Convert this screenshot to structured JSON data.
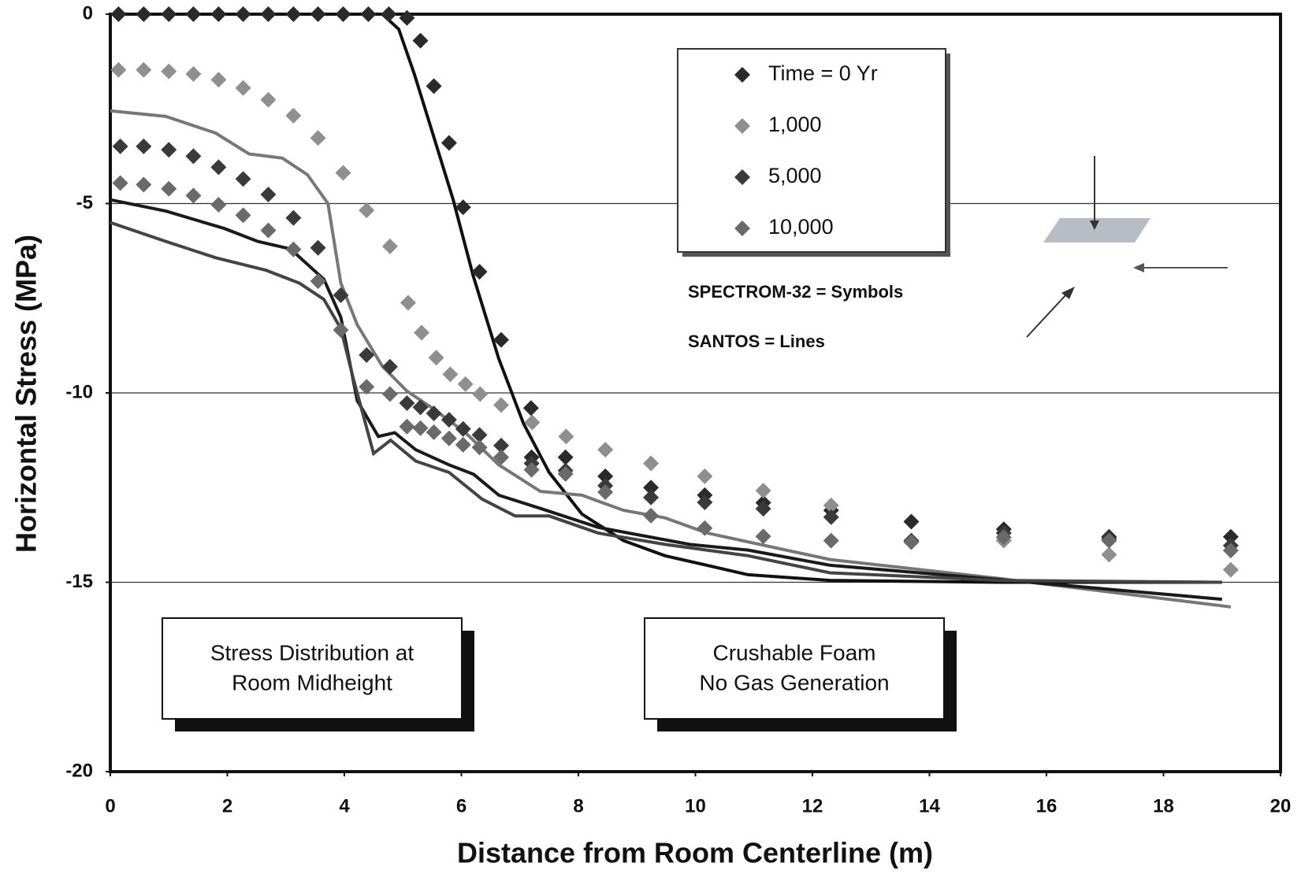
{
  "chart_data": {
    "type": "scatter",
    "x_label": "Distance from Room Centerline (m)",
    "y_label": "Horizontal Stress (MPa)",
    "xlim": [
      0,
      20
    ],
    "xticks": [
      0,
      2,
      4,
      6,
      8,
      10,
      12,
      14,
      16,
      18,
      20
    ],
    "ylim": [
      -20,
      0
    ],
    "yticks": [
      0,
      -5,
      -10,
      -15,
      -20
    ],
    "grid": true,
    "series": [
      {
        "name": "Time = 0 Yr",
        "color": "#2a2a2a",
        "x": [
          0.14,
          0.57,
          1.0,
          1.42,
          1.85,
          2.27,
          2.7,
          3.13,
          3.55,
          3.98,
          4.41,
          4.76,
          5.07,
          5.3,
          5.53,
          5.79,
          6.03,
          6.31,
          6.68,
          7.19,
          7.2,
          7.78,
          8.46,
          9.24,
          10.16,
          11.16,
          12.32,
          13.69,
          15.27,
          17.07,
          19.15
        ],
        "values": [
          0,
          0,
          0,
          0,
          0,
          0,
          0,
          0,
          0,
          0,
          0,
          0,
          -0.1,
          -0.7,
          -1.9,
          -3.4,
          -5.1,
          -6.8,
          -8.6,
          -10.4,
          -11.7,
          -11.7,
          -12.2,
          -12.5,
          -12.7,
          -12.9,
          -13.1,
          -13.4,
          -13.6,
          -13.8,
          -13.8
        ]
      },
      {
        "name": "1,000",
        "color": "#8f8f8f",
        "x": [
          0.14,
          0.57,
          1.0,
          1.42,
          1.85,
          2.27,
          2.7,
          3.13,
          3.55,
          3.98,
          4.38,
          4.78,
          5.09,
          5.32,
          5.57,
          5.81,
          6.07,
          6.32,
          6.68,
          7.21,
          7.79,
          8.46,
          9.24,
          10.16,
          11.16,
          12.32,
          15.27,
          17.07,
          19.15
        ],
        "values": [
          -1.47,
          -1.47,
          -1.51,
          -1.58,
          -1.73,
          -1.95,
          -2.26,
          -2.68,
          -3.27,
          -4.19,
          -5.18,
          -6.13,
          -7.62,
          -8.41,
          -9.07,
          -9.51,
          -9.77,
          -10.03,
          -10.32,
          -10.78,
          -11.15,
          -11.5,
          -11.86,
          -12.2,
          -12.58,
          -12.97,
          -13.9,
          -14.27,
          -14.67
        ]
      },
      {
        "name": "5,000",
        "color": "#3a3a3a",
        "x": [
          0.17,
          0.57,
          1.0,
          1.42,
          1.85,
          2.27,
          2.7,
          3.13,
          3.55,
          3.94,
          4.38,
          4.78,
          5.07,
          5.3,
          5.53,
          5.79,
          6.03,
          6.31,
          6.68,
          7.2,
          7.78,
          8.46,
          9.24,
          10.16,
          11.16,
          12.32,
          13.69,
          15.27,
          17.07,
          19.15
        ],
        "values": [
          -3.49,
          -3.49,
          -3.58,
          -3.75,
          -4.04,
          -4.35,
          -4.76,
          -5.38,
          -6.17,
          -7.42,
          -9.0,
          -9.31,
          -10.27,
          -10.38,
          -10.54,
          -10.71,
          -10.95,
          -11.11,
          -11.39,
          -11.86,
          -12.05,
          -12.45,
          -12.76,
          -12.89,
          -13.06,
          -13.28,
          -13.9,
          -13.7,
          -13.85,
          -14.03
        ]
      },
      {
        "name": "10,000",
        "color": "#6a6a6a",
        "x": [
          0.17,
          0.57,
          1.0,
          1.42,
          1.85,
          2.27,
          2.7,
          3.13,
          3.55,
          3.94,
          4.38,
          4.78,
          5.07,
          5.3,
          5.53,
          5.79,
          6.03,
          6.31,
          6.68,
          7.2,
          7.78,
          8.46,
          9.24,
          10.16,
          11.16,
          12.32,
          13.69,
          15.27,
          17.07,
          19.15
        ],
        "values": [
          -4.46,
          -4.5,
          -4.61,
          -4.79,
          -5.03,
          -5.31,
          -5.71,
          -6.21,
          -7.05,
          -8.34,
          -9.84,
          -10.03,
          -10.89,
          -10.93,
          -11.04,
          -11.2,
          -11.37,
          -11.44,
          -11.7,
          -12.03,
          -12.14,
          -12.62,
          -13.24,
          -13.57,
          -13.79,
          -13.9,
          -13.94,
          -13.81,
          -13.9,
          -14.16
        ]
      }
    ],
    "lines": [
      {
        "color": "#111111",
        "x": [
          0,
          4.65,
          4.93,
          5.2,
          5.5,
          5.86,
          6.2,
          6.64,
          7.06,
          7.5,
          8.06,
          8.77,
          9.48,
          10.9,
          12.3,
          15.2,
          19.0
        ],
        "values": [
          0,
          0,
          -0.4,
          -1.6,
          -3.1,
          -4.9,
          -6.9,
          -9.1,
          -10.8,
          -12.1,
          -13.2,
          -13.9,
          -14.3,
          -14.8,
          -14.95,
          -15.0,
          -15.0
        ]
      },
      {
        "color": "#777777",
        "x": [
          0,
          0.95,
          1.8,
          2.37,
          2.94,
          3.37,
          3.72,
          3.94,
          4.22,
          4.65,
          5.07,
          5.5,
          6.07,
          6.64,
          7.35,
          8.06,
          8.77,
          9.48,
          10.2,
          12.3,
          15.2,
          19.15
        ],
        "values": [
          -2.55,
          -2.7,
          -3.14,
          -3.69,
          -3.8,
          -4.24,
          -5.0,
          -7.1,
          -8.2,
          -9.3,
          -9.95,
          -10.4,
          -11.05,
          -11.9,
          -12.6,
          -12.7,
          -13.1,
          -13.3,
          -13.7,
          -14.4,
          -14.9,
          -15.65
        ]
      },
      {
        "color": "#1a1a1a",
        "x": [
          0,
          0.95,
          1.95,
          2.52,
          3.08,
          3.65,
          3.94,
          4.22,
          4.58,
          4.86,
          5.22,
          5.79,
          6.21,
          6.64,
          7.35,
          8.34,
          9.9,
          10.9,
          12.3,
          15.2,
          19.0
        ],
        "values": [
          -4.9,
          -5.2,
          -5.66,
          -6.0,
          -6.2,
          -7.0,
          -8.0,
          -10.2,
          -11.15,
          -11.05,
          -11.5,
          -11.9,
          -12.15,
          -12.7,
          -13.05,
          -13.55,
          -14.0,
          -14.15,
          -14.55,
          -14.93,
          -15.45
        ]
      },
      {
        "color": "#444444",
        "x": [
          0,
          0.95,
          1.8,
          2.66,
          3.23,
          3.65,
          3.94,
          4.15,
          4.5,
          4.79,
          5.22,
          5.79,
          6.35,
          6.92,
          7.5,
          8.34,
          9.48,
          10.9,
          12.3,
          15.2,
          19.0
        ],
        "values": [
          -5.5,
          -6.0,
          -6.43,
          -6.76,
          -7.1,
          -7.53,
          -8.3,
          -9.6,
          -11.6,
          -11.25,
          -11.8,
          -12.1,
          -12.8,
          -13.25,
          -13.25,
          -13.7,
          -14.0,
          -14.3,
          -14.75,
          -14.95,
          -15.0
        ]
      }
    ],
    "annotations": [
      "SPECTROM-32 = Symbols",
      "SANTOS = Lines"
    ],
    "notes": [
      [
        "Stress Distribution at",
        "Room Midheight"
      ],
      [
        "Crushable Foam",
        "No Gas Generation"
      ]
    ]
  }
}
